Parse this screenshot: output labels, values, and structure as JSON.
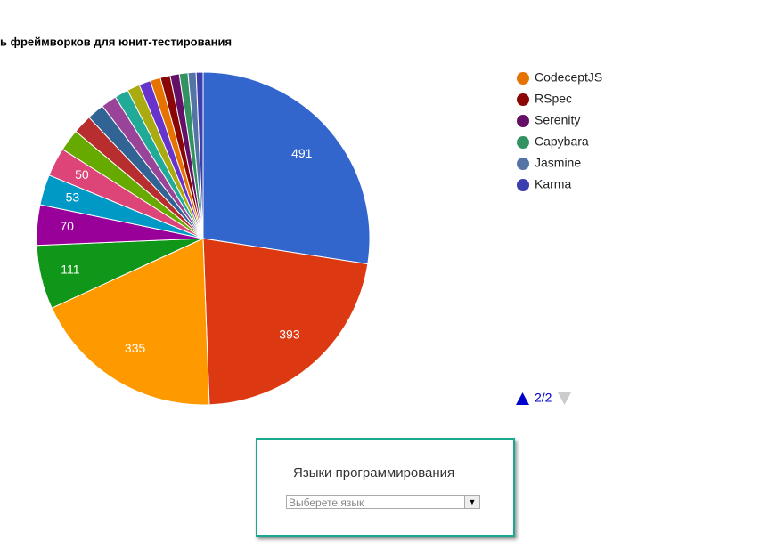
{
  "chart_data": {
    "type": "pie",
    "title": "ь фреймворков для юнит-тестирования",
    "categories": [
      null,
      null,
      null,
      null,
      null,
      null,
      null,
      null,
      null,
      null,
      null,
      null,
      null,
      null,
      "CodeceptJS",
      "RSpec",
      "Serenity",
      "Capybara",
      "Jasmine",
      "Karma"
    ],
    "values": [
      491,
      393,
      335,
      111,
      70,
      53,
      50,
      38,
      33,
      30,
      27,
      24,
      22,
      20,
      18,
      17,
      16,
      15,
      14,
      12
    ],
    "colors": [
      "#3366cc",
      "#dc3912",
      "#ff9900",
      "#109618",
      "#990099",
      "#0099c6",
      "#dd4477",
      "#66aa00",
      "#b82e2e",
      "#316395",
      "#994499",
      "#22aa99",
      "#aaaa11",
      "#6633cc",
      "#e67300",
      "#8b0707",
      "#651067",
      "#329262",
      "#5574a6",
      "#3b3eac"
    ],
    "legend": "right",
    "legend_page": "2/2"
  },
  "panel": {
    "title": "Языки программирования",
    "select_placeholder": "Выберете язык"
  }
}
